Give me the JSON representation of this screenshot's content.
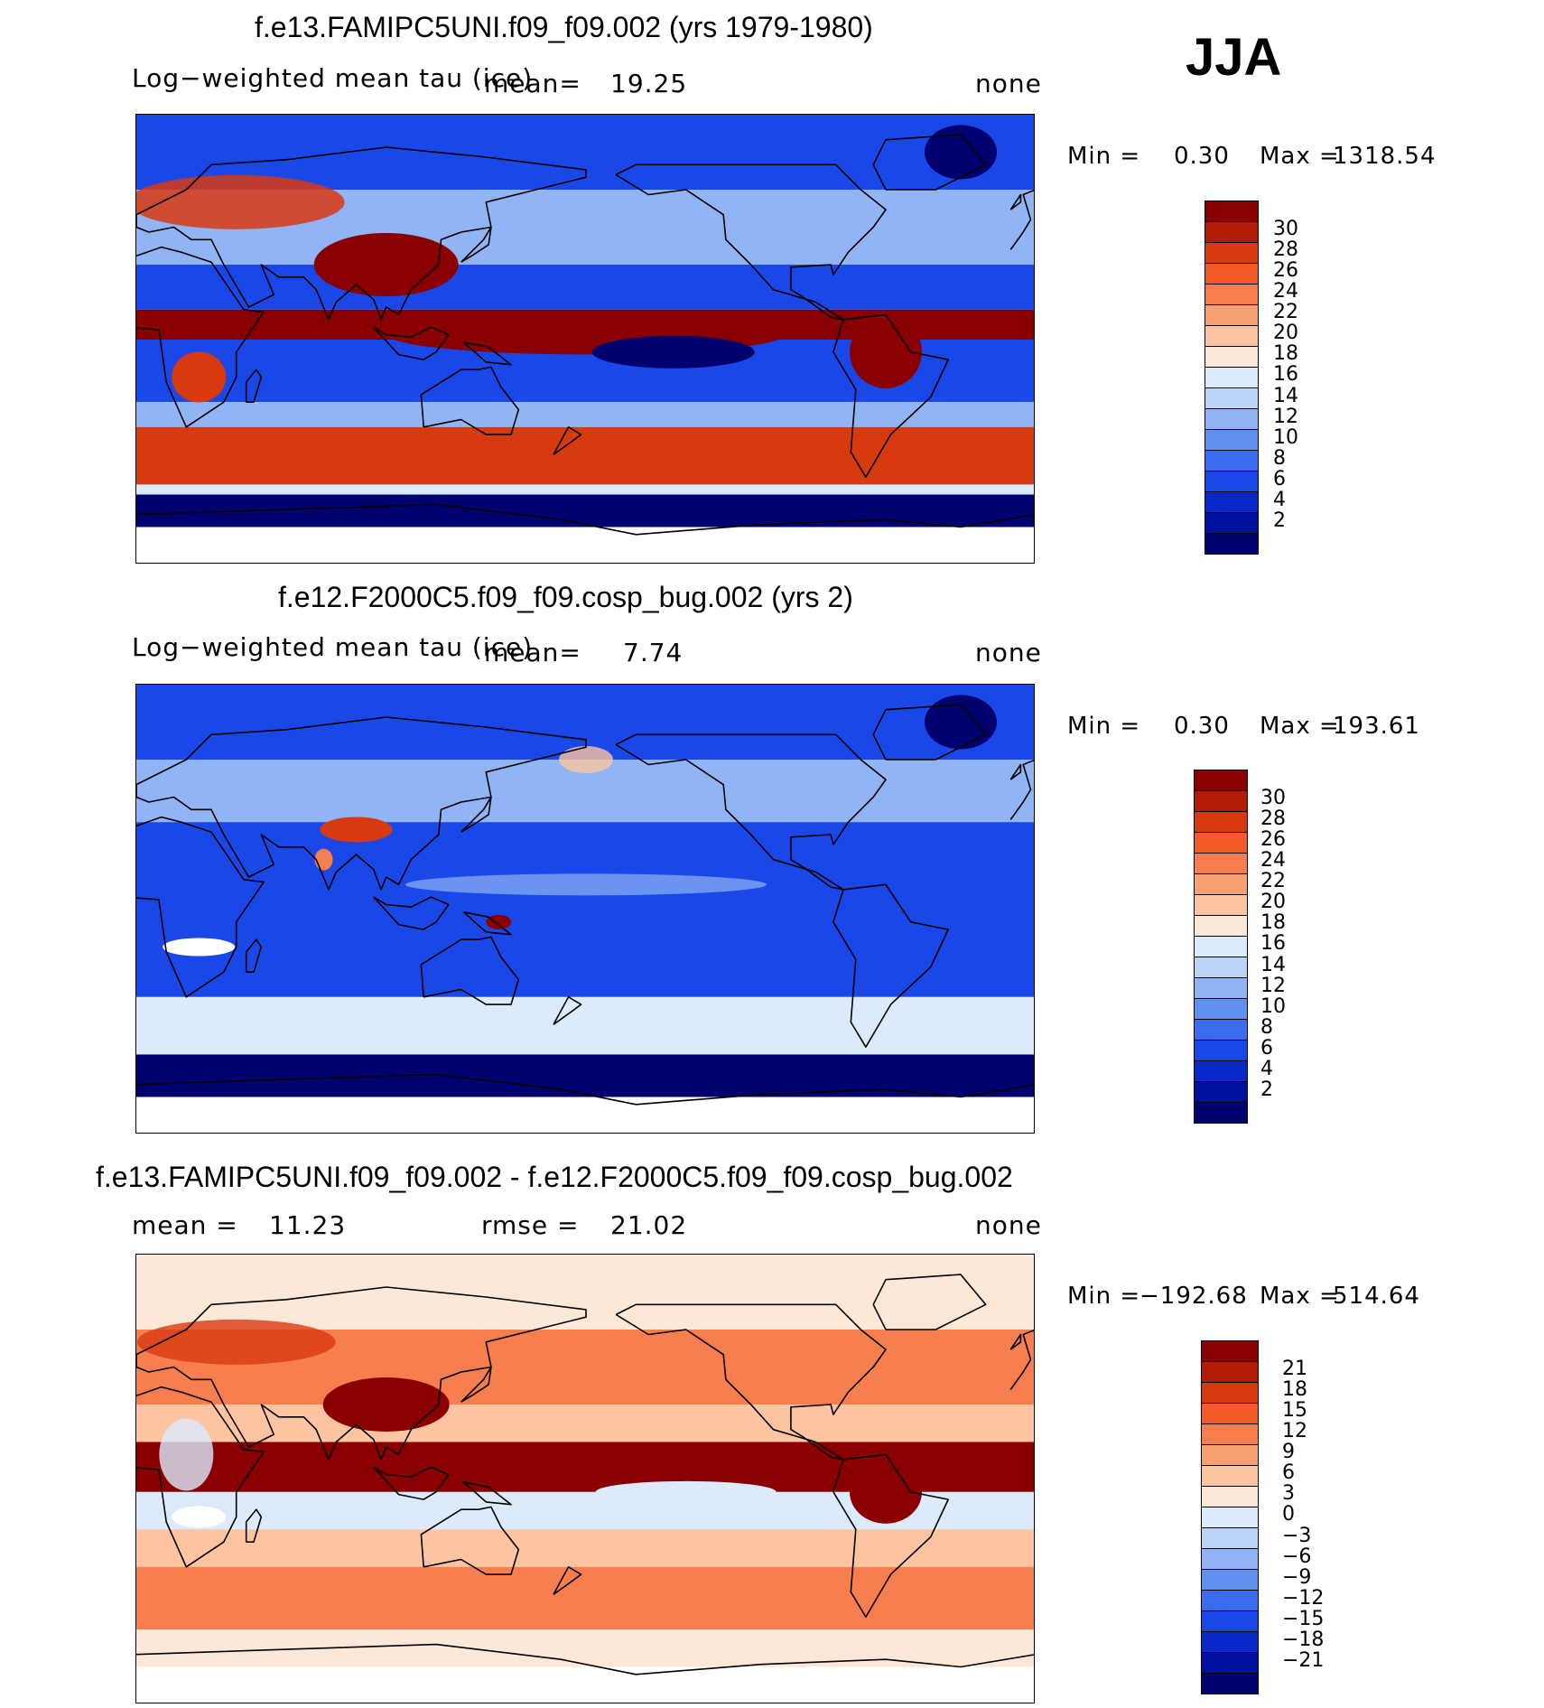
{
  "season": "JJA",
  "colors": {
    "absolute": [
      "#00006e",
      "#0010a0",
      "#0828c8",
      "#1a48e8",
      "#3a6cf0",
      "#6090f0",
      "#90b4f4",
      "#bcd4f8",
      "#dceafc",
      "#fde8d8",
      "#fcc4a0",
      "#f9a070",
      "#f77e4e",
      "#f25a28",
      "#d83a10",
      "#b01c04",
      "#8a0000"
    ],
    "difference": [
      "#00006e",
      "#0010a0",
      "#0828c8",
      "#1a48e8",
      "#3a6cf0",
      "#6090f0",
      "#90b4f4",
      "#bcd4f8",
      "#dceafc",
      "#fde8d8",
      "#fcc4a0",
      "#f9a070",
      "#f77e4e",
      "#f25a28",
      "#d83a10",
      "#b01c04",
      "#8a0000"
    ]
  },
  "panels": [
    {
      "id": "panel-1",
      "title": "f.e13.FAMIPC5UNI.f09_f09.002 (yrs 1979-1980)",
      "variable_label": "Log−weighted mean tau (ice)",
      "stat_label": "mean=",
      "stat_value": "19.25",
      "units": "none",
      "min_label": "Min =",
      "min_value": "0.30",
      "max_label": "Max =",
      "max_value": "1318.54",
      "ticks": [
        "30",
        "28",
        "26",
        "24",
        "22",
        "20",
        "18",
        "16",
        "14",
        "12",
        "10",
        "8",
        "6",
        "4",
        "2"
      ],
      "fields": {
        "ocean_tropics": "hot",
        "ocean_midlat": "cold",
        "storm_tracks_south": "hot",
        "polar": "coldest"
      }
    },
    {
      "id": "panel-2",
      "title": "f.e12.F2000C5.f09_f09.cosp_bug.002 (yrs 2)",
      "variable_label": "Log−weighted mean tau (ice)",
      "stat_label": "mean=",
      "stat_value": "7.74",
      "units": "none",
      "min_label": "Min =",
      "min_value": "0.30",
      "max_label": "Max =",
      "max_value": "193.61",
      "ticks": [
        "30",
        "28",
        "26",
        "24",
        "22",
        "20",
        "18",
        "16",
        "14",
        "12",
        "10",
        "8",
        "6",
        "4",
        "2"
      ],
      "fields": {
        "ocean_tropics": "cold",
        "ocean_midlat": "cold",
        "storm_tracks_south": "mild",
        "polar": "coldest"
      }
    },
    {
      "id": "panel-3",
      "title": "f.e13.FAMIPC5UNI.f09_f09.002 - f.e12.F2000C5.f09_f09.cosp_bug.002",
      "stat_label": "mean =",
      "stat_value": "11.23",
      "stat2_label": "rmse =",
      "stat2_value": "21.02",
      "units": "none",
      "min_label": "Min =",
      "min_value": "−192.68",
      "max_label": "Max =",
      "max_value": "514.64",
      "ticks": [
        "21",
        "18",
        "15",
        "12",
        "9",
        "6",
        "3",
        "0",
        "−3",
        "−6",
        "−9",
        "−12",
        "−15",
        "−18",
        "−21"
      ],
      "fields": {
        "ocean_tropics": "hot",
        "ocean_midlat": "warm",
        "storm_tracks_south": "warm",
        "polar": "neutral"
      }
    }
  ]
}
